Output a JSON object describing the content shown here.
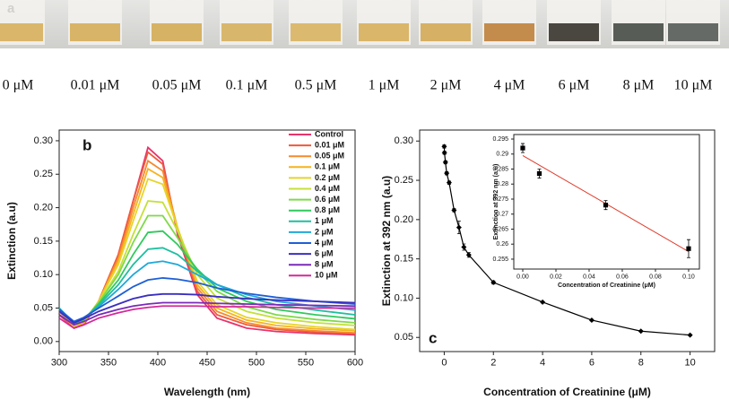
{
  "panel_a": {
    "label": "a",
    "labels": [
      "0 μM",
      "0.01 μM",
      "0.05 μM",
      "0.1 μM",
      "0.5 μM",
      "1 μM",
      "2 μM",
      "4 μM",
      "6 μM",
      "8 μM",
      "10 μM"
    ]
  },
  "chart_data": [
    {
      "type": "line",
      "label": "b",
      "xlabel": "Wavelength (nm)",
      "ylabel": "Extinction (a.u)",
      "legend": "upper right",
      "x": [
        300,
        315,
        325,
        340,
        360,
        375,
        390,
        405,
        420,
        440,
        460,
        490,
        520,
        560,
        600
      ],
      "series": [
        {
          "name": "Control",
          "color": "#e8336b",
          "values": [
            0.04,
            0.02,
            0.025,
            0.06,
            0.13,
            0.21,
            0.29,
            0.27,
            0.16,
            0.07,
            0.035,
            0.02,
            0.015,
            0.012,
            0.01
          ]
        },
        {
          "name": "0.01 μM",
          "color": "#ef5a3c",
          "values": [
            0.04,
            0.02,
            0.025,
            0.06,
            0.13,
            0.21,
            0.283,
            0.265,
            0.165,
            0.075,
            0.04,
            0.025,
            0.018,
            0.014,
            0.012
          ]
        },
        {
          "name": "0.05 μM",
          "color": "#f58a2e",
          "values": [
            0.045,
            0.022,
            0.028,
            0.06,
            0.125,
            0.2,
            0.27,
            0.255,
            0.17,
            0.08,
            0.045,
            0.028,
            0.02,
            0.016,
            0.013
          ]
        },
        {
          "name": "0.1 μM",
          "color": "#f5b31f",
          "values": [
            0.045,
            0.022,
            0.028,
            0.06,
            0.12,
            0.19,
            0.258,
            0.245,
            0.17,
            0.085,
            0.05,
            0.032,
            0.024,
            0.019,
            0.016
          ]
        },
        {
          "name": "0.2 μM",
          "color": "#e6d42a",
          "values": [
            0.048,
            0.023,
            0.03,
            0.06,
            0.115,
            0.18,
            0.243,
            0.235,
            0.17,
            0.09,
            0.055,
            0.036,
            0.028,
            0.022,
            0.018
          ]
        },
        {
          "name": "0.4 μM",
          "color": "#c5e03a",
          "values": [
            0.048,
            0.024,
            0.03,
            0.058,
            0.105,
            0.16,
            0.21,
            0.208,
            0.165,
            0.1,
            0.065,
            0.045,
            0.035,
            0.028,
            0.024
          ]
        },
        {
          "name": "0.6 μM",
          "color": "#7fd94a",
          "values": [
            0.05,
            0.025,
            0.032,
            0.058,
            0.1,
            0.148,
            0.188,
            0.188,
            0.155,
            0.105,
            0.075,
            0.052,
            0.04,
            0.033,
            0.028
          ]
        },
        {
          "name": "0.8 μM",
          "color": "#2fc95c",
          "values": [
            0.05,
            0.026,
            0.033,
            0.056,
            0.092,
            0.13,
            0.163,
            0.165,
            0.145,
            0.108,
            0.08,
            0.06,
            0.048,
            0.04,
            0.034
          ]
        },
        {
          "name": "1 μM",
          "color": "#1fbfa0",
          "values": [
            0.05,
            0.027,
            0.034,
            0.054,
            0.085,
            0.115,
            0.138,
            0.14,
            0.13,
            0.105,
            0.085,
            0.066,
            0.055,
            0.047,
            0.04
          ]
        },
        {
          "name": "2 μM",
          "color": "#1fa9d8",
          "values": [
            0.05,
            0.028,
            0.035,
            0.052,
            0.078,
            0.1,
            0.117,
            0.12,
            0.115,
            0.1,
            0.085,
            0.07,
            0.06,
            0.053,
            0.047
          ]
        },
        {
          "name": "4 μM",
          "color": "#1e5fd6",
          "values": [
            0.048,
            0.03,
            0.036,
            0.05,
            0.068,
            0.082,
            0.092,
            0.095,
            0.093,
            0.088,
            0.08,
            0.072,
            0.066,
            0.06,
            0.056
          ]
        },
        {
          "name": "6 μM",
          "color": "#3a2fc0",
          "values": [
            0.045,
            0.028,
            0.034,
            0.045,
            0.056,
            0.064,
            0.069,
            0.071,
            0.071,
            0.07,
            0.067,
            0.064,
            0.062,
            0.06,
            0.058
          ]
        },
        {
          "name": "8 μM",
          "color": "#7a2ab8",
          "values": [
            0.04,
            0.025,
            0.03,
            0.04,
            0.048,
            0.053,
            0.056,
            0.058,
            0.058,
            0.058,
            0.057,
            0.056,
            0.055,
            0.054,
            0.053
          ]
        },
        {
          "name": "10 μM",
          "color": "#d42a9a",
          "values": [
            0.035,
            0.02,
            0.025,
            0.035,
            0.043,
            0.048,
            0.051,
            0.053,
            0.053,
            0.053,
            0.052,
            0.052,
            0.051,
            0.05,
            0.05
          ]
        }
      ],
      "xlim": [
        300,
        600
      ],
      "ylim": [
        -0.015,
        0.316
      ],
      "xticks": [
        300,
        350,
        400,
        450,
        500,
        550,
        600
      ],
      "yticks": [
        {
          "value": 0,
          "label": "0.00"
        },
        {
          "value": 0.05,
          "label": "0.05"
        },
        {
          "value": 0.1,
          "label": "0.10"
        },
        {
          "value": 0.15,
          "label": "0.15"
        },
        {
          "value": 0.2,
          "label": "0.20"
        },
        {
          "value": 0.25,
          "label": "0.25"
        },
        {
          "value": 0.3,
          "label": "0.30"
        }
      ]
    },
    {
      "type": "scatter",
      "label": "c",
      "xlabel": "Concentration of Creatinine (μM)",
      "ylabel": "Extinction at 392 nm (a.u)",
      "marker": "diamond",
      "connect": true,
      "color": "#000000",
      "x": [
        0,
        0.01,
        0.05,
        0.1,
        0.2,
        0.4,
        0.6,
        0.8,
        1,
        2,
        4,
        6,
        8,
        10
      ],
      "values": [
        0.293,
        0.285,
        0.273,
        0.259,
        0.247,
        0.212,
        0.19,
        0.165,
        0.155,
        0.12,
        0.095,
        0.072,
        0.058,
        0.053
      ],
      "errors": [
        0.002,
        0.002,
        0.002,
        0.002,
        0.002,
        0.002,
        0.008,
        0.004,
        0.003,
        0.002,
        0.001,
        0.001,
        0.001,
        0.001
      ],
      "xlim": [
        -1,
        11
      ],
      "ylim": [
        0.032,
        0.314
      ],
      "xticks": [
        0,
        2,
        4,
        6,
        8,
        10
      ],
      "yticks": [
        {
          "value": 0.05,
          "label": "0.05"
        },
        {
          "value": 0.1,
          "label": "0.10"
        },
        {
          "value": 0.15,
          "label": "0.15"
        },
        {
          "value": 0.2,
          "label": "0.20"
        },
        {
          "value": 0.25,
          "label": "0.25"
        },
        {
          "value": 0.3,
          "label": "0.30"
        }
      ]
    },
    {
      "type": "scatter",
      "xlabel": "Concentration of Creatinine (μM)",
      "ylabel": "Extinction at 392 nm (a.u)",
      "marker": "square",
      "connect": false,
      "color": "#000000",
      "x": [
        0,
        0.01,
        0.05,
        0.1
      ],
      "values": [
        0.292,
        0.2835,
        0.273,
        0.2585
      ],
      "errors": [
        0.0015,
        0.0015,
        0.0015,
        0.003
      ],
      "fit": {
        "x": [
          0,
          0.1
        ],
        "values": [
          0.2895,
          0.2575
        ],
        "color": "#e03a2a"
      },
      "xlim": [
        -0.0054,
        0.1065
      ],
      "ylim": [
        0.2517,
        0.2965
      ],
      "xticks": [
        {
          "value": 0,
          "label": "0.00"
        },
        {
          "value": 0.02,
          "label": "0.02"
        },
        {
          "value": 0.04,
          "label": "0.04"
        },
        {
          "value": 0.06,
          "label": "0.06"
        },
        {
          "value": 0.08,
          "label": "0.08"
        },
        {
          "value": 0.1,
          "label": "0.10"
        }
      ],
      "yticks": [
        0.255,
        0.26,
        0.265,
        0.27,
        0.275,
        0.28,
        0.285,
        0.29,
        0.295
      ]
    }
  ]
}
